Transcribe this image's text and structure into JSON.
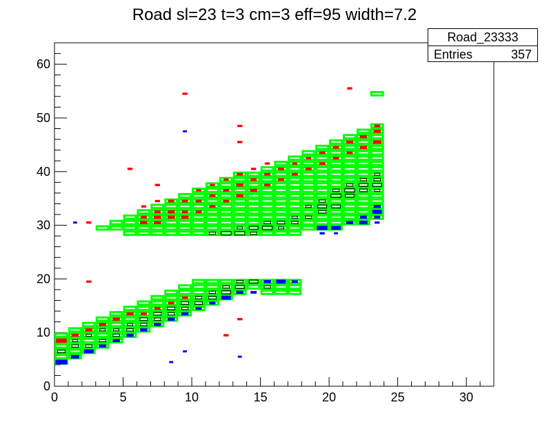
{
  "title": "Road sl=23 t=3 cm=3 eff=95 width=7.2",
  "stats": {
    "name": "Road_23333",
    "entries_label": "Entries",
    "entries_value": "357"
  },
  "colors": {
    "road": "#00ff00",
    "black": "#000000",
    "red": "#ff0000",
    "blue": "#0000ff"
  },
  "chart_data": {
    "type": "heatmap",
    "title": "Road sl=23 t=3 cm=3 eff=95 width=7.2",
    "xlabel": "",
    "ylabel": "",
    "xlim": [
      0,
      32
    ],
    "ylim": [
      0,
      64
    ],
    "x_ticks": [
      0,
      5,
      10,
      15,
      20,
      25,
      30
    ],
    "y_ticks": [
      0,
      10,
      20,
      30,
      40,
      50,
      60
    ],
    "grid": false,
    "road_lower": {
      "x_start": 0,
      "x_end": 17,
      "y_start": 4,
      "height": 6,
      "slope": 1
    },
    "road_upper": {
      "x_start": 3,
      "x_end": 23,
      "y_start": 29,
      "height_start": 1,
      "height_end": 19,
      "bottom_floor": 28
    },
    "road_isolated": [
      [
        23,
        54
      ]
    ],
    "black_cells": [
      [
        0,
        6,
        0.7
      ],
      [
        1,
        7,
        0.6
      ],
      [
        1,
        8,
        0.5
      ],
      [
        2,
        7,
        0.6
      ],
      [
        2,
        9,
        0.5
      ],
      [
        3,
        8,
        0.6
      ],
      [
        3,
        10,
        0.5
      ],
      [
        4,
        9,
        0.6
      ],
      [
        4,
        10,
        0.5
      ],
      [
        5,
        10,
        0.6
      ],
      [
        5,
        11,
        0.5
      ],
      [
        6,
        11,
        0.6
      ],
      [
        6,
        12,
        0.7
      ],
      [
        7,
        12,
        0.6
      ],
      [
        7,
        13,
        0.7
      ],
      [
        8,
        13,
        0.6
      ],
      [
        8,
        14,
        0.7
      ],
      [
        9,
        14,
        0.6
      ],
      [
        9,
        15,
        0.7
      ],
      [
        10,
        15,
        0.7
      ],
      [
        10,
        16,
        0.6
      ],
      [
        11,
        16,
        0.7
      ],
      [
        11,
        17,
        0.6
      ],
      [
        12,
        17,
        0.8
      ],
      [
        12,
        18,
        0.6
      ],
      [
        13,
        18,
        0.8
      ],
      [
        13,
        19,
        0.6
      ],
      [
        14,
        19,
        0.8
      ],
      [
        15,
        18,
        0.6
      ],
      [
        11,
        28,
        0.6
      ],
      [
        12,
        28,
        0.9
      ],
      [
        13,
        28,
        0.9
      ],
      [
        13,
        29,
        0.5
      ],
      [
        14,
        28,
        0.6
      ],
      [
        14,
        29,
        0.8
      ],
      [
        15,
        29,
        0.9
      ],
      [
        15,
        30,
        0.6
      ],
      [
        16,
        29,
        0.5
      ],
      [
        16,
        30,
        0.7
      ],
      [
        17,
        30,
        0.6
      ],
      [
        17,
        31,
        0.5
      ],
      [
        18,
        31,
        0.6
      ],
      [
        18,
        33,
        0.5
      ],
      [
        19,
        32,
        0.7
      ],
      [
        19,
        33,
        0.8
      ],
      [
        19,
        34,
        0.6
      ],
      [
        20,
        33,
        0.8
      ],
      [
        20,
        35,
        0.9
      ],
      [
        20,
        36,
        0.6
      ],
      [
        21,
        35,
        0.8
      ],
      [
        21,
        36,
        0.9
      ],
      [
        21,
        37,
        0.6
      ],
      [
        22,
        36,
        0.7
      ],
      [
        22,
        37,
        0.8
      ],
      [
        22,
        38,
        0.6
      ],
      [
        23,
        37,
        0.8
      ],
      [
        23,
        38,
        0.6
      ],
      [
        23,
        39,
        0.5
      ],
      [
        23,
        36,
        0.5
      ]
    ],
    "red_cells": [
      [
        0,
        8,
        0.9
      ],
      [
        1,
        9,
        0.6
      ],
      [
        2,
        10,
        0.6
      ],
      [
        3,
        11,
        0.6
      ],
      [
        4,
        12,
        0.6
      ],
      [
        5,
        13,
        0.6
      ],
      [
        6,
        13,
        0.5
      ],
      [
        7,
        14,
        0.5
      ],
      [
        8,
        15,
        0.5
      ],
      [
        9,
        16,
        0.5
      ],
      [
        2,
        19,
        0.4
      ],
      [
        2,
        30,
        0.4
      ],
      [
        5,
        40,
        0.4
      ],
      [
        6,
        30,
        0.6
      ],
      [
        6,
        31,
        0.5
      ],
      [
        6,
        33,
        0.4
      ],
      [
        7,
        30,
        0.6
      ],
      [
        7,
        31,
        0.6
      ],
      [
        7,
        32,
        0.5
      ],
      [
        7,
        34,
        0.4
      ],
      [
        7,
        37,
        0.4
      ],
      [
        8,
        31,
        0.6
      ],
      [
        8,
        32,
        0.6
      ],
      [
        8,
        34,
        0.5
      ],
      [
        9,
        31,
        0.6
      ],
      [
        9,
        32,
        0.5
      ],
      [
        9,
        34,
        0.5
      ],
      [
        9,
        54,
        0.4
      ],
      [
        10,
        32,
        0.5
      ],
      [
        10,
        34,
        0.5
      ],
      [
        10,
        36,
        0.4
      ],
      [
        11,
        33,
        0.5
      ],
      [
        11,
        35,
        0.5
      ],
      [
        11,
        37,
        0.4
      ],
      [
        12,
        34,
        0.5
      ],
      [
        12,
        36,
        0.5
      ],
      [
        12,
        38,
        0.4
      ],
      [
        13,
        35,
        0.6
      ],
      [
        13,
        37,
        0.6
      ],
      [
        13,
        39,
        0.5
      ],
      [
        13,
        45,
        0.4
      ],
      [
        13,
        48,
        0.4
      ],
      [
        14,
        36,
        0.6
      ],
      [
        14,
        38,
        0.5
      ],
      [
        14,
        40,
        0.4
      ],
      [
        15,
        37,
        0.5
      ],
      [
        15,
        39,
        0.5
      ],
      [
        15,
        41,
        0.4
      ],
      [
        16,
        38,
        0.5
      ],
      [
        16,
        40,
        0.5
      ],
      [
        17,
        39,
        0.5
      ],
      [
        17,
        41,
        0.4
      ],
      [
        18,
        40,
        0.5
      ],
      [
        18,
        42,
        0.4
      ],
      [
        19,
        41,
        0.5
      ],
      [
        19,
        43,
        0.5
      ],
      [
        20,
        42,
        0.5
      ],
      [
        20,
        44,
        0.5
      ],
      [
        21,
        43,
        0.5
      ],
      [
        21,
        45,
        0.6
      ],
      [
        21,
        55,
        0.4
      ],
      [
        22,
        44,
        0.6
      ],
      [
        22,
        46,
        0.6
      ],
      [
        23,
        45,
        0.7
      ],
      [
        23,
        47,
        0.6
      ],
      [
        23,
        48,
        0.5
      ],
      [
        12,
        9,
        0.4
      ],
      [
        13,
        12,
        0.4
      ]
    ],
    "blue_cells": [
      [
        0,
        4,
        1.0
      ],
      [
        1,
        5,
        0.7
      ],
      [
        2,
        6,
        0.8
      ],
      [
        3,
        7,
        0.6
      ],
      [
        4,
        8,
        0.6
      ],
      [
        5,
        9,
        0.6
      ],
      [
        6,
        10,
        0.6
      ],
      [
        7,
        11,
        0.6
      ],
      [
        8,
        12,
        0.6
      ],
      [
        9,
        13,
        0.6
      ],
      [
        10,
        14,
        0.5
      ],
      [
        11,
        15,
        0.5
      ],
      [
        12,
        16,
        0.8
      ],
      [
        13,
        17,
        0.6
      ],
      [
        14,
        17,
        0.5
      ],
      [
        15,
        19,
        0.6
      ],
      [
        16,
        19,
        0.8
      ],
      [
        17,
        19,
        0.5
      ],
      [
        8,
        4,
        0.3
      ],
      [
        9,
        6,
        0.3
      ],
      [
        13,
        5,
        0.3
      ],
      [
        1,
        30,
        0.3
      ],
      [
        9,
        47,
        0.3
      ],
      [
        19,
        28,
        0.4
      ],
      [
        19,
        29,
        0.9
      ],
      [
        20,
        28,
        0.3
      ],
      [
        20,
        29,
        0.8
      ],
      [
        21,
        30,
        0.6
      ],
      [
        22,
        30,
        0.7
      ],
      [
        22,
        31,
        0.6
      ],
      [
        23,
        31,
        0.5
      ],
      [
        23,
        32,
        0.8
      ],
      [
        23,
        33,
        0.6
      ],
      [
        23,
        30,
        0.4
      ]
    ]
  }
}
